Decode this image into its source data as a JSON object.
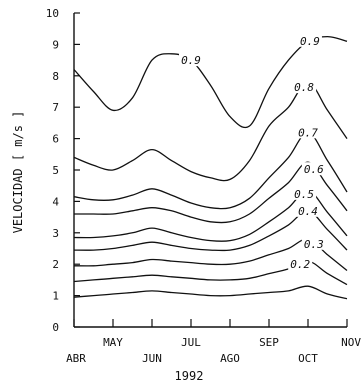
{
  "chart_data": {
    "type": "line",
    "ylabel": "VELOCIDAD [ m/s ]",
    "year_label": "1992",
    "ylim": [
      0,
      10
    ],
    "y_ticks": [
      0,
      1,
      2,
      3,
      4,
      5,
      6,
      7,
      8,
      9,
      10
    ],
    "x_ticks": [
      {
        "label": "ABR",
        "row": "lower"
      },
      {
        "label": "MAY",
        "row": "upper"
      },
      {
        "label": "JUN",
        "row": "lower"
      },
      {
        "label": "JUL",
        "row": "upper"
      },
      {
        "label": "AGO",
        "row": "lower"
      },
      {
        "label": "SEP",
        "row": "upper"
      },
      {
        "label": "OCT",
        "row": "lower"
      },
      {
        "label": "NOV",
        "row": "upper"
      }
    ],
    "x": [
      0,
      0.5,
      1,
      1.5,
      2,
      2.5,
      3,
      3.5,
      4,
      4.5,
      5,
      5.5,
      6,
      6.5,
      7
    ],
    "grid": false,
    "series": [
      {
        "name": "0.9",
        "values": [
          8.2,
          7.5,
          6.9,
          7.3,
          8.5,
          8.7,
          8.5,
          7.7,
          6.7,
          6.4,
          7.6,
          8.5,
          9.1,
          9.25,
          9.1
        ]
      },
      {
        "name": "0.8",
        "values": [
          5.4,
          5.15,
          5.0,
          5.3,
          5.65,
          5.3,
          4.95,
          4.75,
          4.7,
          5.3,
          6.4,
          7.0,
          7.8,
          6.9,
          6.0
        ]
      },
      {
        "name": "0.7",
        "values": [
          4.15,
          4.05,
          4.05,
          4.2,
          4.4,
          4.2,
          3.95,
          3.8,
          3.8,
          4.1,
          4.75,
          5.4,
          6.2,
          5.3,
          4.3
        ]
      },
      {
        "name": "0.6",
        "values": [
          3.6,
          3.6,
          3.6,
          3.7,
          3.8,
          3.7,
          3.5,
          3.35,
          3.35,
          3.6,
          4.1,
          4.6,
          5.25,
          4.5,
          3.7
        ]
      },
      {
        "name": "0.5",
        "values": [
          2.85,
          2.85,
          2.9,
          3.0,
          3.15,
          3.0,
          2.85,
          2.75,
          2.75,
          2.95,
          3.35,
          3.8,
          4.35,
          3.65,
          2.9
        ]
      },
      {
        "name": "0.4",
        "values": [
          2.45,
          2.45,
          2.5,
          2.6,
          2.7,
          2.6,
          2.5,
          2.45,
          2.45,
          2.6,
          2.9,
          3.25,
          3.7,
          3.1,
          2.45
        ]
      },
      {
        "name": "0.3",
        "values": [
          1.95,
          1.95,
          2.0,
          2.05,
          2.15,
          2.1,
          2.05,
          2.0,
          2.0,
          2.1,
          2.3,
          2.5,
          2.8,
          2.3,
          1.8
        ]
      },
      {
        "name": "0.2",
        "values": [
          1.45,
          1.5,
          1.55,
          1.6,
          1.65,
          1.6,
          1.55,
          1.5,
          1.5,
          1.55,
          1.7,
          1.85,
          2.1,
          1.7,
          1.35
        ]
      },
      {
        "name": "",
        "values": [
          0.95,
          1.0,
          1.05,
          1.1,
          1.15,
          1.1,
          1.05,
          1.0,
          1.0,
          1.05,
          1.1,
          1.15,
          1.3,
          1.05,
          0.9
        ]
      }
    ],
    "curve_labels": [
      {
        "text": "0.9",
        "series": 0,
        "at_x": 3.0
      },
      {
        "text": "0.9",
        "series": 0,
        "at_x": 6.05
      },
      {
        "text": "0.8",
        "series": 1,
        "at_x": 5.9
      },
      {
        "text": "0.7",
        "series": 2,
        "at_x": 6.0
      },
      {
        "text": "0.6",
        "series": 3,
        "at_x": 6.15
      },
      {
        "text": "0.5",
        "series": 4,
        "at_x": 5.9
      },
      {
        "text": "0.4",
        "series": 5,
        "at_x": 6.0
      },
      {
        "text": "0.3",
        "series": 6,
        "at_x": 6.15
      },
      {
        "text": "0.2",
        "series": 7,
        "at_x": 5.8
      }
    ]
  }
}
